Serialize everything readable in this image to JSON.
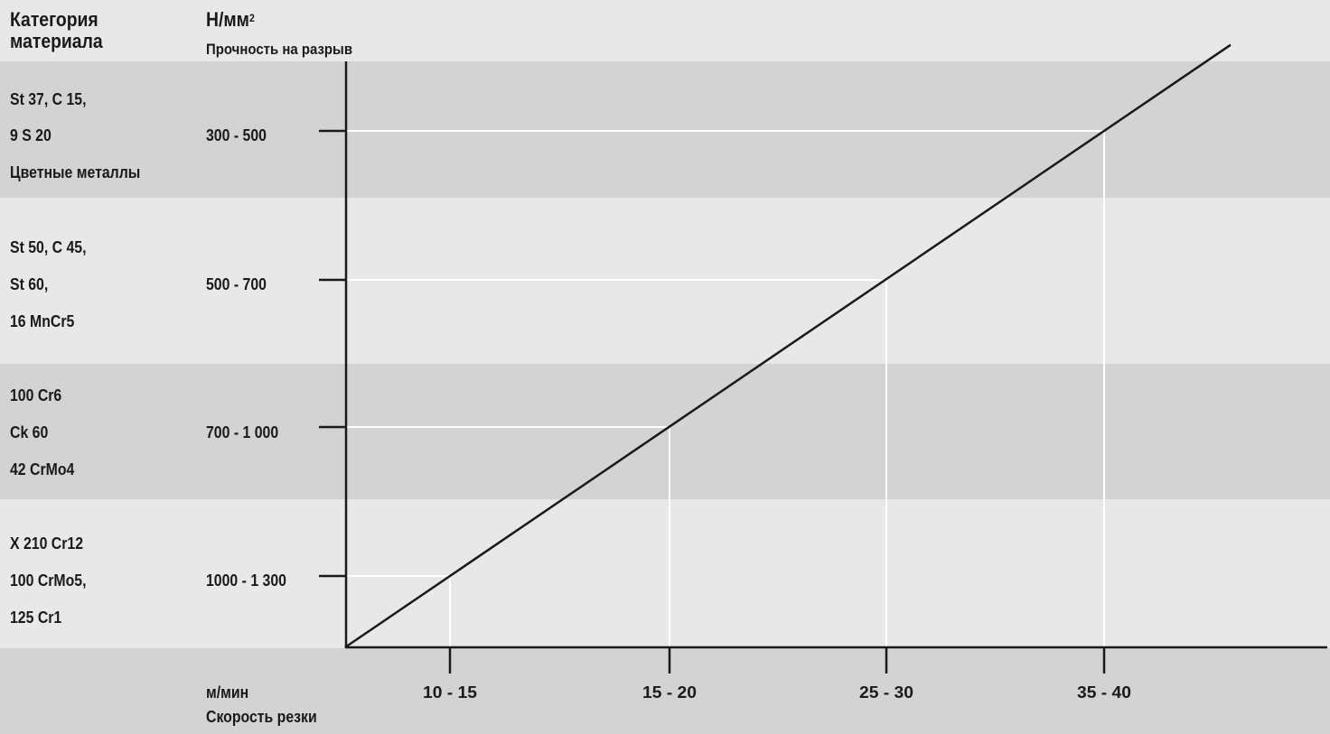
{
  "header": {
    "category_label": "Категория материала",
    "unit_label": "Н/мм",
    "unit_sup": "2",
    "strength_label": "Прочность на разрыв"
  },
  "rows": [
    {
      "materials": [
        "St 37, C 15,",
        "9 S 20",
        "Цветные металлы"
      ],
      "strength": "300 - 500",
      "shade": "dark"
    },
    {
      "materials": [
        "St 50, C 45,",
        "St 60,",
        "16 MnCr5"
      ],
      "strength": "500 - 700",
      "shade": "light"
    },
    {
      "materials": [
        "100 Cr6",
        "Ck 60",
        "42 CrMo4"
      ],
      "strength": "700 - 1 000",
      "shade": "dark"
    },
    {
      "materials": [
        "X 210 Cr12",
        "100 CrMo5,",
        "125 Cr1"
      ],
      "strength": "1000 - 1 300",
      "shade": "light"
    }
  ],
  "footer": {
    "unit_label": "м/мин",
    "speed_label": "Скорость резки"
  },
  "colors": {
    "band_dark": "#d3d3d3",
    "band_light": "#e8e8e8",
    "line": "#1a1a1a",
    "guide": "#ffffff"
  },
  "chart_data": {
    "type": "line",
    "title": "",
    "xlabel": "Скорость резки",
    "xunit": "м/мин",
    "ylabel": "Прочность на разрыв",
    "yunit": "Н/мм²",
    "x_categories": [
      "10 - 15",
      "15 - 20",
      "25 - 30",
      "35 - 40"
    ],
    "y_categories": [
      "1000 - 1 300",
      "700 - 1 000",
      "500 - 700",
      "300 - 500"
    ],
    "points": [
      {
        "x": "10 - 15",
        "y": "1000 - 1 300"
      },
      {
        "x": "15 - 20",
        "y": "700 - 1 000"
      },
      {
        "x": "25 - 30",
        "y": "500 - 700"
      },
      {
        "x": "35 - 40",
        "y": "300 - 500"
      }
    ],
    "grid": false,
    "legend": "none"
  }
}
